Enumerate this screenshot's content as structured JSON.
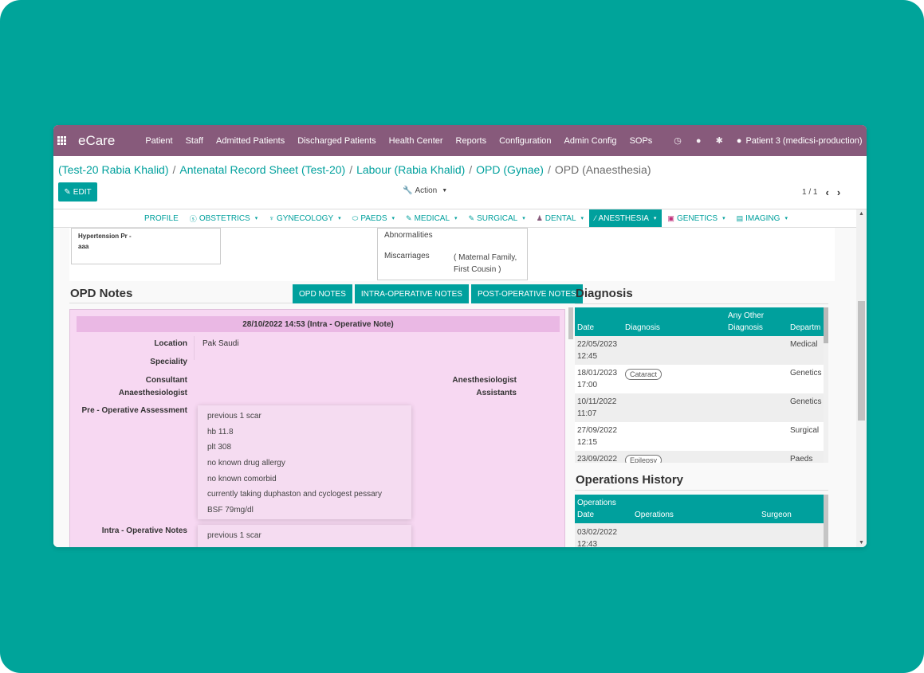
{
  "topbar": {
    "brand": "eCare",
    "menu": [
      "Patient",
      "Staff",
      "Admitted Patients",
      "Discharged Patients",
      "Health Center",
      "Reports",
      "Configuration",
      "Admin Config",
      "SOPs"
    ],
    "user": "Patient 3 (medicsi-production)"
  },
  "breadcrumb": {
    "items": [
      "(Test-20 Rabia Khalid)",
      "Antenatal Record Sheet (Test-20)",
      "Labour (Rabia Khalid)",
      "OPD (Gynae)"
    ],
    "current": "OPD (Anaesthesia)",
    "separator": "/"
  },
  "controls": {
    "edit_label": "EDIT",
    "action_label": "Action",
    "pager": "1 / 1"
  },
  "tabs": [
    {
      "label": "PROFILE",
      "caret": ""
    },
    {
      "label": "OBSTETRICS",
      "caret": "▾"
    },
    {
      "label": "GYNECOLOGY",
      "caret": "▾"
    },
    {
      "label": "PAEDS",
      "caret": "▾"
    },
    {
      "label": "MEDICAL",
      "caret": "▾"
    },
    {
      "label": "SURGICAL",
      "caret": "▾"
    },
    {
      "label": "DENTAL",
      "caret": "▾"
    },
    {
      "label": "ANESTHESIA",
      "caret": "▾"
    },
    {
      "label": "GENETICS",
      "caret": "▾"
    },
    {
      "label": "IMAGING",
      "caret": "▾"
    }
  ],
  "top_boxes": {
    "box1_line1": "Hypertension Pr -",
    "box1_line2": "aaa",
    "abnormalities": "Abnormalities",
    "miscarriages_label": "Miscarriages",
    "miscarriages_line1": "( Maternal Family,",
    "miscarriages_line2": "First Cousin )"
  },
  "opd_notes": {
    "title": "OPD Notes",
    "buttons": [
      "OPD NOTES",
      "INTRA-OPERATIVE NOTES",
      "POST-OPERATIVE NOTES"
    ],
    "note_header": "28/10/2022 14:53 (Intra - Operative Note)",
    "location_label": "Location",
    "location_value": "Pak Saudi",
    "speciality_label": "Speciality",
    "consultant_label_1": "Consultant",
    "consultant_label_2": "Anaesthesiologist",
    "assistants_label_1": "Anesthesiologist",
    "assistants_label_2": "Assistants",
    "pre_op_label": "Pre - Operative Assessment",
    "pre_op_items": [
      "previous 1 scar",
      "hb 11.8",
      "plt 308",
      "no known drug allergy",
      "no known comorbid",
      "currently taking duphaston and cyclogest pessary",
      "BSF 79mg/dl"
    ],
    "intra_op_label": "Intra - Operative Notes",
    "intra_op_items": [
      "previous 1 scar"
    ]
  },
  "diagnosis": {
    "title": "Diagnosis",
    "headers": {
      "date": "Date",
      "diagnosis": "Diagnosis",
      "other_1": "Any Other",
      "other_2": "Diagnosis",
      "department": "Departm"
    },
    "rows": [
      {
        "date": "22/05/2023",
        "time": "12:45",
        "diagnosis": "",
        "department": "Medical"
      },
      {
        "date": "18/01/2023",
        "time": "17:00",
        "diagnosis": "Cataract",
        "department": "Genetics"
      },
      {
        "date": "10/11/2022",
        "time": "11:07",
        "diagnosis": "",
        "department": "Genetics"
      },
      {
        "date": "27/09/2022",
        "time": "12:15",
        "diagnosis": "",
        "department": "Surgical"
      },
      {
        "date": "23/09/2022",
        "time": "",
        "diagnosis": "Epilepsy",
        "department": "Paeds"
      }
    ]
  },
  "operations": {
    "title": "Operations History",
    "headers": {
      "date_1": "Operations",
      "date_2": "Date",
      "operations": "Operations",
      "surgeon": "Surgeon"
    },
    "rows": [
      {
        "date": "03/02/2022",
        "time": "12:43"
      }
    ]
  },
  "colors": {
    "background": "#00a49a",
    "topbar": "#875a7b",
    "accent": "#00a09d",
    "note_panel": "#f7d8f2",
    "note_header": "#eab8e4"
  }
}
